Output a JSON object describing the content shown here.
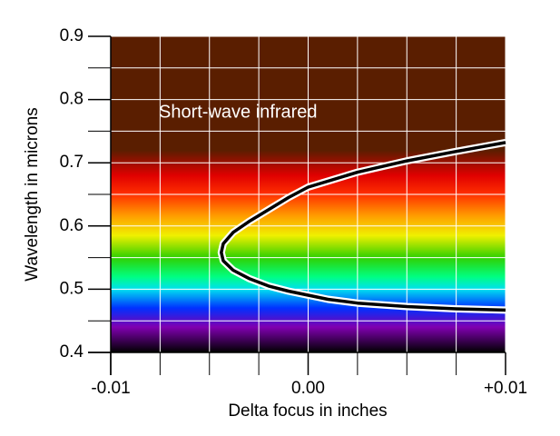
{
  "chart_data": {
    "type": "line",
    "xlabel": "Delta focus in inches",
    "ylabel": "Wavelength in microns",
    "annotation": "Short-wave infrared",
    "x": [
      0.01,
      0.0075,
      0.005,
      0.0025,
      0.001,
      0,
      -0.001,
      -0.002,
      -0.003,
      -0.0038,
      -0.0043,
      -0.0044,
      -0.0043,
      -0.0038,
      -0.003,
      -0.002,
      -0.001,
      0,
      0.0025,
      0.005,
      0.0075,
      0.01
    ],
    "series": [
      {
        "color": "#000000",
        "values": [
          0.467,
          0.469,
          0.4725,
          0.478,
          0.484,
          0.4905,
          0.497,
          0.505,
          0.517,
          0.53,
          0.545,
          0.558,
          0.572,
          0.59,
          0.607,
          0.626,
          0.645,
          0.6615,
          0.685,
          0.703,
          0.718,
          0.732
        ]
      }
    ],
    "xlim": [
      -0.01,
      0.01
    ],
    "xticks": [
      -0.01,
      {
        "value": 0,
        "label": "0.00"
      },
      {
        "value": 0.01,
        "label": "+0.01"
      }
    ],
    "xminorticks": [
      -0.0075,
      -0.005,
      -0.0025,
      0.0025,
      0.005,
      0.0075
    ],
    "ylim": [
      0.4,
      0.9
    ],
    "yticks": [
      0.4,
      0.5,
      0.6,
      0.7,
      0.8,
      0.9
    ],
    "yminorticks": [
      0.45,
      0.55,
      0.65,
      0.75,
      0.85
    ],
    "grid": true
  }
}
